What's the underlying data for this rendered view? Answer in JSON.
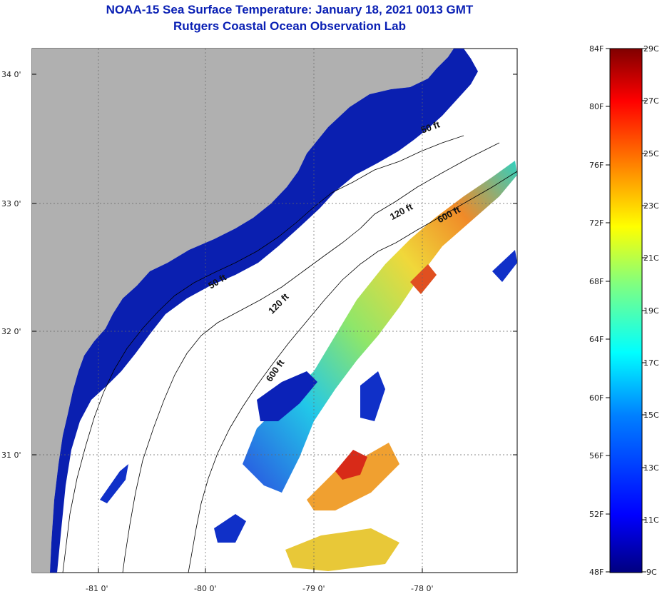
{
  "header": {
    "title": "NOAA-15 Sea Surface Temperature:  January 18, 2021 0013 GMT",
    "subtitle": "Rutgers Coastal Ocean Observation Lab"
  },
  "map": {
    "lat_ticks": [
      "34 0'",
      "33 0'",
      "32 0'",
      "31 0'"
    ],
    "lon_ticks": [
      "-81 0'",
      "-80 0'",
      "-79 0'",
      "-78 0'"
    ],
    "contour_labels": [
      "50 ft",
      "120 ft",
      "600 ft",
      "50 ft",
      "120 ft",
      "600 ft"
    ],
    "colors": {
      "land": "#b0b0b0",
      "cold_water": "#0a1fb0",
      "no_data": "#ffffff"
    }
  },
  "colorbar": {
    "f_labels": [
      "84F",
      "80F",
      "76F",
      "72F",
      "68F",
      "64F",
      "60F",
      "56F",
      "52F",
      "48F"
    ],
    "c_labels": [
      "29C",
      "27C",
      "25C",
      "23C",
      "21C",
      "19C",
      "17C",
      "15C",
      "13C",
      "11C",
      "9C"
    ],
    "colors": [
      "#000080",
      "#0000ff",
      "#0080ff",
      "#00ffff",
      "#80ff80",
      "#ffff00",
      "#ff8000",
      "#ff0000",
      "#800000"
    ]
  }
}
